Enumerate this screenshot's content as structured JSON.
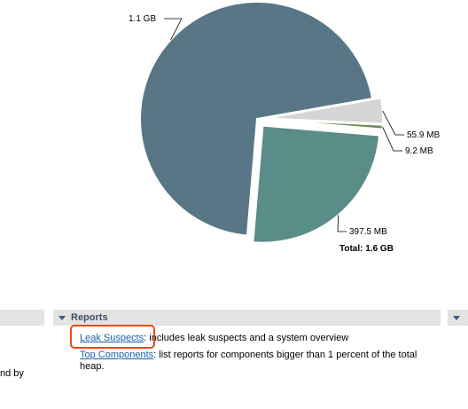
{
  "chart_data": {
    "type": "pie",
    "slices": [
      {
        "label": "1.1 GB",
        "value": 1.1,
        "unit": "GB",
        "color": "#587686",
        "exploded": false
      },
      {
        "label": "397.5 MB",
        "value": 397.5,
        "unit": "MB",
        "color": "#5a8c88",
        "exploded": true
      },
      {
        "label": "9.2 MB",
        "value": 9.2,
        "unit": "MB",
        "color": "#6e8a4e",
        "exploded": true
      },
      {
        "label": "55.9 MB",
        "value": 55.9,
        "unit": "MB",
        "color": "#d5d5d5",
        "exploded": true
      }
    ],
    "total_label": "Total: 1.6 GB"
  },
  "sections": {
    "reports_title": "Reports"
  },
  "reports": [
    {
      "link": "Leak Suspects",
      "description": ": includes leak suspects and a system overview"
    },
    {
      "link": "Top Components",
      "description": ": list reports for components bigger than 1 percent of the total heap."
    }
  ],
  "left_fragment": "nd by"
}
